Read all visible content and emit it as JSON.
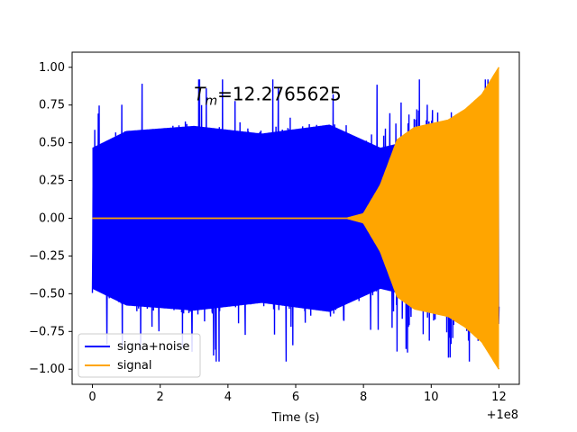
{
  "chart_data": {
    "type": "line",
    "title": "",
    "annotation": {
      "prefix": "T",
      "subscript": "m",
      "value": "=12.2765625",
      "x": 3.0,
      "y": 0.78
    },
    "xlabel": "Time (s)",
    "ylabel": "",
    "xlim": [
      -0.6,
      12.6
    ],
    "ylim": [
      -1.1,
      1.1
    ],
    "x_offset_label": "+1e8",
    "xticks": [
      0,
      2,
      4,
      6,
      8,
      10,
      12
    ],
    "xtick_labels": [
      "0",
      "2",
      "4",
      "6",
      "8",
      "10",
      "12"
    ],
    "yticks": [
      1.0,
      0.75,
      0.5,
      0.25,
      0.0,
      -0.25,
      -0.5,
      -0.75,
      -1.0
    ],
    "ytick_labels": [
      "1.00",
      "0.75",
      "0.50",
      "0.25",
      "0.00",
      "−0.25",
      "−0.50",
      "−0.75",
      "−1.00"
    ],
    "grid": false,
    "legend_position": "bottom-left",
    "series": [
      {
        "name": "signa+noise",
        "color": "#0000ff",
        "description_points": {
          "x_range": [
            0,
            12
          ],
          "noise_amplitude_range": [
            0.45,
            0.92
          ],
          "envelope": [
            [
              0.0,
              0.55
            ],
            [
              1.0,
              0.68
            ],
            [
              3.0,
              0.72
            ],
            [
              5.0,
              0.66
            ],
            [
              7.0,
              0.73
            ],
            [
              8.5,
              0.55
            ],
            [
              9.3,
              0.6
            ],
            [
              10.5,
              0.56
            ],
            [
              12.0,
              0.55
            ]
          ]
        }
      },
      {
        "name": "signal",
        "color": "#ffa500",
        "description_points": {
          "x_range": [
            0,
            12
          ],
          "envelope": [
            [
              0.0,
              0.0
            ],
            [
              7.5,
              0.0
            ],
            [
              8.0,
              0.03
            ],
            [
              8.5,
              0.22
            ],
            [
              9.0,
              0.52
            ],
            [
              9.5,
              0.6
            ],
            [
              10.5,
              0.65
            ],
            [
              11.0,
              0.72
            ],
            [
              11.5,
              0.82
            ],
            [
              12.0,
              1.0
            ]
          ]
        }
      }
    ]
  }
}
